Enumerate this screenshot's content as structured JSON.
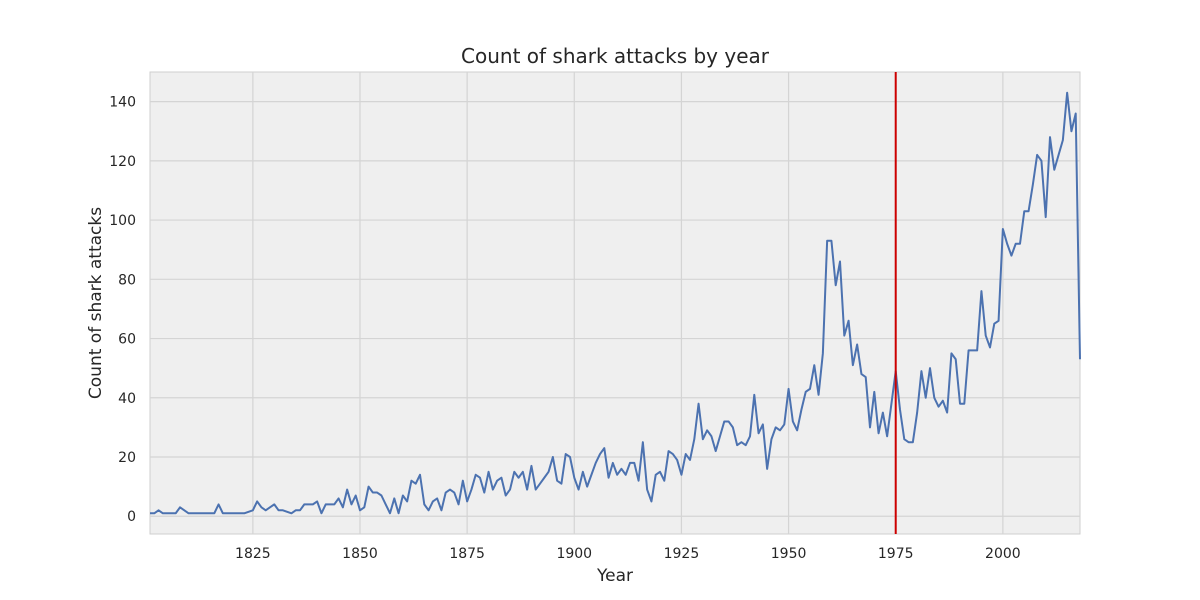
{
  "chart_data": {
    "type": "line",
    "title": "Count of shark attacks by year",
    "xlabel": "Year",
    "ylabel": "Count of shark attacks",
    "xlim": [
      1801,
      2018
    ],
    "ylim": [
      -6,
      150
    ],
    "xticks": [
      1825,
      1850,
      1875,
      1900,
      1925,
      1950,
      1975,
      2000
    ],
    "yticks": [
      0,
      20,
      40,
      60,
      80,
      100,
      120,
      140
    ],
    "grid": true,
    "legend": "none",
    "colors": {
      "line": "#4c72b0",
      "vline": "#cc0000",
      "background": "#efefef",
      "grid": "#d4d4d4"
    },
    "vline": {
      "x": 1975
    },
    "series": [
      {
        "x": [
          1801,
          1802,
          1803,
          1804,
          1805,
          1806,
          1807,
          1808,
          1809,
          1810,
          1811,
          1812,
          1813,
          1814,
          1815,
          1816,
          1817,
          1818,
          1819,
          1820,
          1821,
          1822,
          1823,
          1824,
          1825,
          1826,
          1827,
          1828,
          1829,
          1830,
          1831,
          1832,
          1833,
          1834,
          1835,
          1836,
          1837,
          1838,
          1839,
          1840,
          1841,
          1842,
          1843,
          1844,
          1845,
          1846,
          1847,
          1848,
          1849,
          1850,
          1851,
          1852,
          1853,
          1854,
          1855,
          1856,
          1857,
          1858,
          1859,
          1860,
          1861,
          1862,
          1863,
          1864,
          1865,
          1866,
          1867,
          1868,
          1869,
          1870,
          1871,
          1872,
          1873,
          1874,
          1875,
          1876,
          1877,
          1878,
          1879,
          1880,
          1881,
          1882,
          1883,
          1884,
          1885,
          1886,
          1887,
          1888,
          1889,
          1890,
          1891,
          1892,
          1893,
          1894,
          1895,
          1896,
          1897,
          1898,
          1899,
          1900,
          1901,
          1902,
          1903,
          1904,
          1905,
          1906,
          1907,
          1908,
          1909,
          1910,
          1911,
          1912,
          1913,
          1914,
          1915,
          1916,
          1917,
          1918,
          1919,
          1920,
          1921,
          1922,
          1923,
          1924,
          1925,
          1926,
          1927,
          1928,
          1929,
          1930,
          1931,
          1932,
          1933,
          1934,
          1935,
          1936,
          1937,
          1938,
          1939,
          1940,
          1941,
          1942,
          1943,
          1944,
          1945,
          1946,
          1947,
          1948,
          1949,
          1950,
          1951,
          1952,
          1953,
          1954,
          1955,
          1956,
          1957,
          1958,
          1959,
          1960,
          1961,
          1962,
          1963,
          1964,
          1965,
          1966,
          1967,
          1968,
          1969,
          1970,
          1971,
          1972,
          1973,
          1974,
          1975,
          1976,
          1977,
          1978,
          1979,
          1980,
          1981,
          1982,
          1983,
          1984,
          1985,
          1986,
          1987,
          1988,
          1989,
          1990,
          1991,
          1992,
          1993,
          1994,
          1995,
          1996,
          1997,
          1998,
          1999,
          2000,
          2001,
          2002,
          2003,
          2004,
          2005,
          2006,
          2007,
          2008,
          2009,
          2010,
          2011,
          2012,
          2013,
          2014,
          2015,
          2016,
          2017,
          2018
        ],
        "values": [
          1,
          1,
          2,
          1,
          1,
          1,
          1,
          3,
          2,
          1,
          1,
          1,
          1,
          1,
          1,
          1,
          4,
          1,
          1,
          1,
          1,
          1,
          1,
          1.5,
          2,
          5,
          3,
          2,
          3,
          4,
          2,
          2,
          1.5,
          1,
          2,
          2,
          4,
          4,
          4,
          5,
          1,
          4,
          4,
          4,
          6,
          3,
          9,
          4,
          7,
          2,
          3,
          10,
          8,
          8,
          7,
          4,
          1,
          6,
          1,
          7,
          5,
          12,
          11,
          14,
          4,
          2,
          5,
          6,
          2,
          8,
          9,
          8,
          4,
          12,
          5,
          9,
          14,
          13,
          8,
          15,
          9,
          12,
          13,
          7,
          9,
          15,
          13,
          15,
          9,
          17,
          9,
          11,
          13,
          15,
          20,
          12,
          11,
          21,
          20,
          13,
          9,
          15,
          10,
          14,
          18,
          21,
          23,
          13,
          18,
          14,
          16,
          14,
          18,
          18,
          12,
          25,
          9,
          5,
          14,
          15,
          12,
          22,
          21,
          19,
          14,
          21,
          19,
          26,
          38,
          26,
          29,
          27,
          22,
          27,
          32,
          32,
          30,
          24,
          25,
          24,
          27,
          41,
          28,
          31,
          16,
          26,
          30,
          29,
          31,
          43,
          32,
          29,
          36,
          42,
          43,
          51,
          41,
          55,
          93,
          93,
          78,
          86,
          61,
          66,
          51,
          58,
          48,
          47,
          30,
          42,
          28,
          35,
          27,
          38,
          49,
          36,
          26,
          25,
          25,
          35,
          49,
          40,
          50,
          40,
          37,
          39,
          35,
          55,
          53,
          38,
          38,
          56,
          56,
          56,
          76,
          61,
          57,
          65,
          66,
          97,
          92,
          88,
          92,
          92,
          103,
          103,
          112,
          122,
          120,
          101,
          128,
          117,
          122,
          127,
          143,
          130,
          136,
          53
        ]
      }
    ]
  }
}
